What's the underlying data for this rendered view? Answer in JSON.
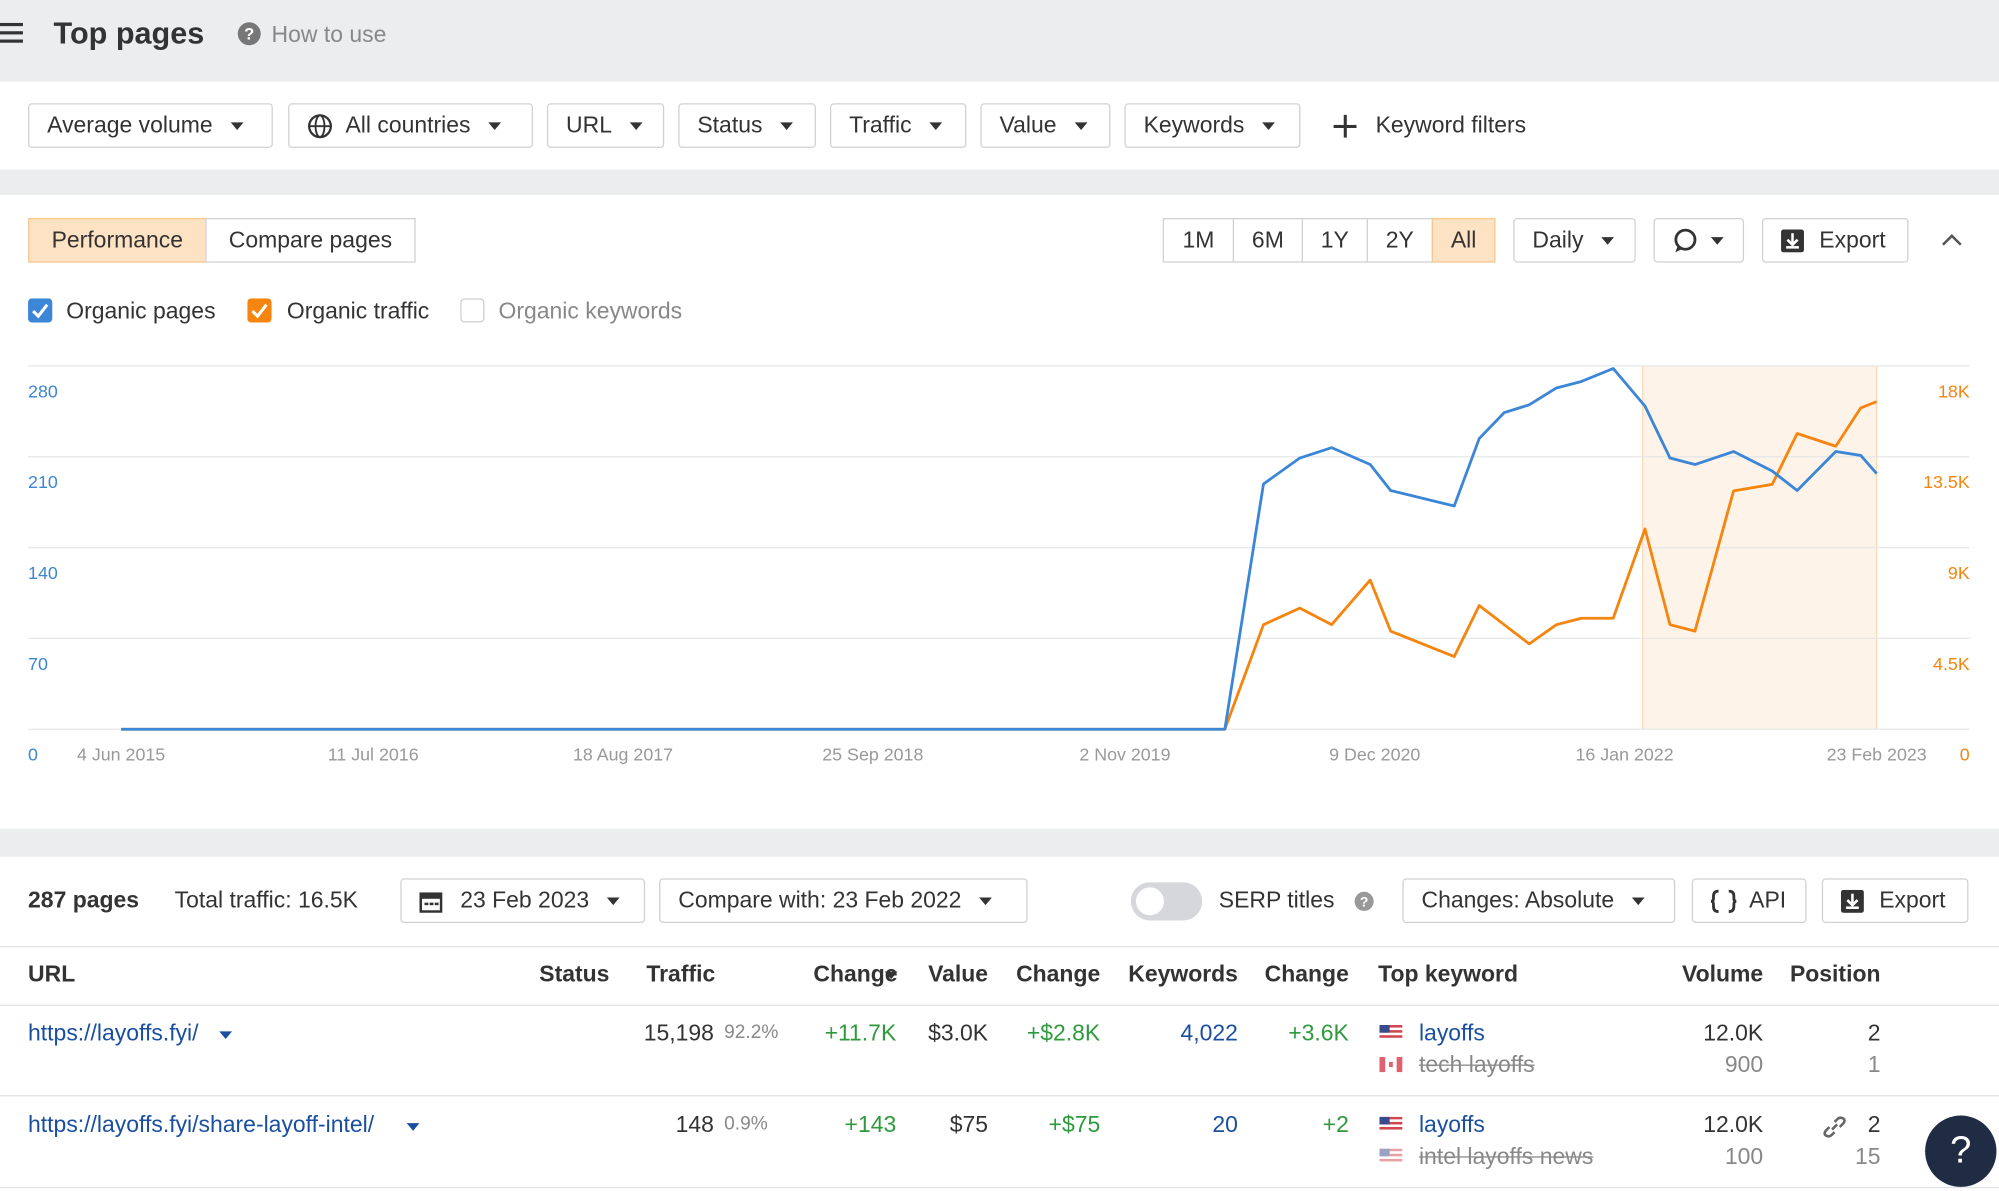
{
  "header": {
    "title": "Top pages",
    "help": "How to use"
  },
  "filters": {
    "buttons": [
      "Average volume",
      "All countries",
      "URL",
      "Status",
      "Traffic",
      "Value",
      "Keywords"
    ],
    "keyword_filters": "Keyword filters"
  },
  "panel": {
    "tabs": [
      "Performance",
      "Compare pages"
    ],
    "ranges": [
      "1M",
      "6M",
      "1Y",
      "2Y",
      "All"
    ],
    "granularity": "Daily",
    "export": "Export",
    "unchecked_metric": "Organic keywords"
  },
  "chart_data": {
    "type": "line",
    "x": [
      2015.42,
      2020.28,
      2020.45,
      2020.61,
      2020.75,
      2020.92,
      2021.01,
      2021.29,
      2021.4,
      2021.51,
      2021.62,
      2021.74,
      2021.85,
      2021.99,
      2022.13,
      2022.24,
      2022.35,
      2022.52,
      2022.69,
      2022.8,
      2022.97,
      2023.08,
      2023.15
    ],
    "xlim": [
      2015.42,
      2023.15
    ],
    "xticks": [
      {
        "value": 2015.42,
        "label": "4 Jun 2015"
      },
      {
        "value": 2016.53,
        "label": "11 Jul 2016"
      },
      {
        "value": 2017.63,
        "label": "18 Aug 2017"
      },
      {
        "value": 2018.73,
        "label": "25 Sep 2018"
      },
      {
        "value": 2019.84,
        "label": "2 Nov 2019"
      },
      {
        "value": 2020.94,
        "label": "9 Dec 2020"
      },
      {
        "value": 2022.04,
        "label": "16 Jan 2022"
      },
      {
        "value": 2023.15,
        "label": "23 Feb 2023"
      }
    ],
    "ylim": [
      0,
      280
    ],
    "yticks": [
      0,
      70,
      140,
      210,
      280
    ],
    "y2lim": [
      0,
      18000
    ],
    "y2ticks": [
      0,
      {
        "value": 4500,
        "label": "4.5K"
      },
      {
        "value": 9000,
        "label": "9K"
      },
      {
        "value": 13500,
        "label": "13.5K"
      },
      {
        "value": 18000,
        "label": "18K"
      }
    ],
    "grid": true,
    "highlight_range": [
      2022.12,
      2023.15
    ],
    "series": [
      {
        "name": "Organic pages",
        "color": "#3b86d6",
        "values": [
          0,
          0,
          189,
          209,
          217,
          204,
          184,
          172,
          224,
          244,
          250,
          263,
          268,
          278,
          249,
          209,
          204,
          214,
          199,
          184,
          214,
          211,
          197
        ]
      },
      {
        "name": "Organic traffic",
        "color": "#f5850f",
        "axis": "y2",
        "values": [
          0,
          0,
          5180,
          6000,
          5180,
          7390,
          4860,
          3600,
          6130,
          5180,
          4230,
          5180,
          5500,
          5500,
          9920,
          5180,
          4860,
          11810,
          12130,
          14650,
          14020,
          15920,
          16230
        ]
      }
    ]
  },
  "summary": {
    "pages": "287 pages",
    "total": "Total traffic: 16.5K",
    "date": "23 Feb 2023",
    "compare": "Compare with: 23 Feb 2022",
    "serp": "SERP titles",
    "changes": "Changes: Absolute",
    "api": "API",
    "export": "Export"
  },
  "table": {
    "columns": [
      "URL",
      "Status",
      "Traffic",
      "Change",
      "Value",
      "Change",
      "Keywords",
      "Change",
      "Top keyword",
      "Volume",
      "Position"
    ],
    "rows": [
      {
        "url": "https://layoffs.fyi/",
        "traffic": "15,198",
        "share": "92.2%",
        "change": "+11.7K",
        "value": "$3.0K",
        "value_change": "+$2.8K",
        "keywords": "4,022",
        "keywords_change": "+3.6K",
        "top_keywords": [
          {
            "keyword": "layoffs",
            "volume": "12.0K",
            "position": "2"
          },
          {
            "keyword": "tech layoffs",
            "volume": "900",
            "position": "1"
          }
        ]
      },
      {
        "url": "https://layoffs.fyi/share-layoff-intel/",
        "traffic": "148",
        "share": "0.9%",
        "change": "+143",
        "value": "$75",
        "value_change": "+$75",
        "keywords": "20",
        "keywords_change": "+2",
        "top_keywords": [
          {
            "keyword": "layoffs",
            "volume": "12.0K",
            "position": "2"
          },
          {
            "keyword": "intel layoffs news",
            "volume": "100",
            "position": "15"
          }
        ]
      }
    ]
  },
  "help_button": "?"
}
